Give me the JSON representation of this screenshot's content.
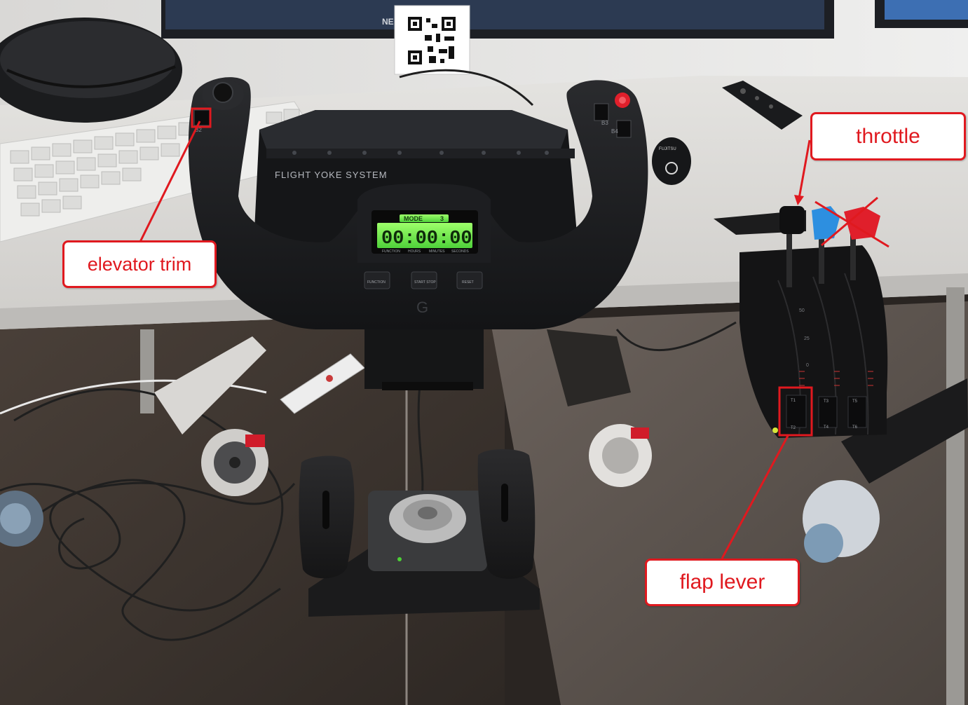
{
  "annotations": {
    "elevator_trim": "elevator trim",
    "throttle": "throttle",
    "flap_lever": "flap lever"
  },
  "device": {
    "panel_label": "FLIGHT YOKE SYSTEM",
    "display_mode": "MODE",
    "display_mode_number": "3",
    "display_time": "00:00:00",
    "display_sub_labels": [
      "FUNCTION",
      "HOURS",
      "MINUTES",
      "SECONDS"
    ],
    "buttons": [
      "FUNCTION",
      "START STOP",
      "RESET"
    ],
    "yoke_switch_labels": [
      "B2",
      "B3",
      "B4"
    ],
    "quadrant_labels": [
      "T1",
      "T2",
      "T3",
      "T4",
      "T5",
      "T6"
    ],
    "quadrant_scale": [
      "50",
      "25",
      "0"
    ]
  },
  "background": {
    "monitor_brand_fragment": "NE",
    "mouse_brand": "FUJITSU"
  },
  "colors": {
    "annotation_red": "#e0191f",
    "lcd_green": "#7bff4a",
    "throttle_blue": "#2d8fe0",
    "mixture_red": "#e01f2b"
  }
}
